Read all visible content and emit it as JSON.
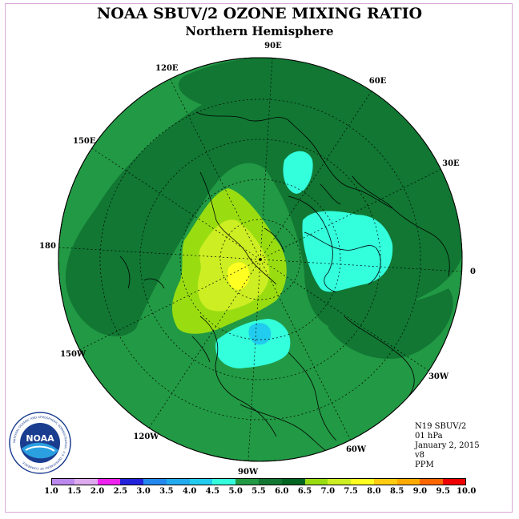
{
  "header": {
    "title": "NOAA SBUV/2 OZONE MIXING RATIO",
    "subtitle": "Northern Hemisphere"
  },
  "longitude_labels": [
    {
      "text": "90E",
      "deg": 90
    },
    {
      "text": "60E",
      "deg": 60
    },
    {
      "text": "30E",
      "deg": 30
    },
    {
      "text": "0",
      "deg": 0
    },
    {
      "text": "30W",
      "deg": -30
    },
    {
      "text": "60W",
      "deg": -60
    },
    {
      "text": "90W",
      "deg": -90
    },
    {
      "text": "120W",
      "deg": -120
    },
    {
      "text": "150W",
      "deg": -150
    },
    {
      "text": "180",
      "deg": 180
    },
    {
      "text": "150E",
      "deg": 150
    },
    {
      "text": "120E",
      "deg": 120
    }
  ],
  "info": {
    "satellite": "N19 SBUV/2",
    "level": "01 hPa",
    "date": "January 2, 2015",
    "version": "v8",
    "units": "PPM"
  },
  "logo": {
    "text": "NOAA",
    "ring_text": "NATIONAL OCEANIC AND ATMOSPHERIC ADMINISTRATION · U.S. DEPARTMENT OF COMMERCE"
  },
  "colorbar": {
    "labels": [
      "1.0",
      "1.5",
      "2.0",
      "2.5",
      "3.0",
      "3.5",
      "4.0",
      "4.5",
      "5.0",
      "5.5",
      "6.0",
      "6.5",
      "7.0",
      "7.5",
      "8.0",
      "8.5",
      "9.0",
      "9.5",
      "10.0"
    ],
    "colors": [
      "#bb88ee",
      "#ddaaee",
      "#ee22ee",
      "#2222dd",
      "#2288ee",
      "#22aaee",
      "#22ccee",
      "#33ffdd",
      "#229944",
      "#117733",
      "#006622",
      "#99dd11",
      "#ccee22",
      "#ffff22",
      "#ffcc11",
      "#ffaa00",
      "#ff6600",
      "#ee0000",
      "#884422"
    ]
  },
  "map": {
    "background_color": "#229944",
    "regions": [
      {
        "name": "dark-green-6.0",
        "color": "#117733",
        "level": 5.5
      },
      {
        "name": "cyan-4.5-europe",
        "color": "#33ffdd",
        "level": 4.5
      },
      {
        "name": "cyan-4.5-siberia",
        "color": "#33ffdd",
        "level": 4.5
      },
      {
        "name": "cyan-4.5-north-america",
        "color": "#33ffdd",
        "level": 4.5
      },
      {
        "name": "blue-4.0-north-america",
        "color": "#22ccee",
        "level": 4.0
      },
      {
        "name": "yellow-green-6.5",
        "color": "#99dd11",
        "level": 6.0
      },
      {
        "name": "yellow-7.0",
        "color": "#ccee22",
        "level": 6.5
      },
      {
        "name": "yellow-7.5",
        "color": "#ffff22",
        "level": 7.0
      }
    ]
  }
}
